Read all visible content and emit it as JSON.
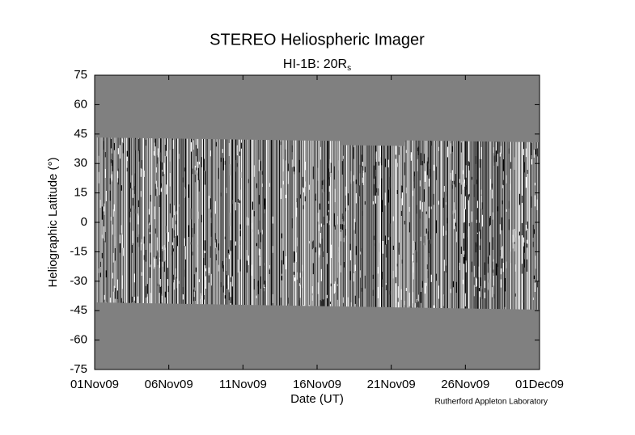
{
  "chart_data": {
    "type": "image",
    "title": "STEREO Heliospheric Imager",
    "subtitle": {
      "text": "HI-1B: 20R",
      "subscript": "s"
    },
    "xlabel": "Date (UT)",
    "ylabel": "Heliographic Latitude (°)",
    "annotation": "Rutherford Appleton Laboratory",
    "xlim": [
      0,
      30
    ],
    "xticks": [
      {
        "value": 0,
        "label": "01Nov09"
      },
      {
        "value": 5,
        "label": "06Nov09"
      },
      {
        "value": 10,
        "label": "11Nov09"
      },
      {
        "value": 15,
        "label": "16Nov09"
      },
      {
        "value": 20,
        "label": "21Nov09"
      },
      {
        "value": 25,
        "label": "26Nov09"
      },
      {
        "value": 30,
        "label": "01Dec09"
      }
    ],
    "ylim": [
      -75,
      75
    ],
    "yticks": [
      -75,
      -60,
      -45,
      -30,
      -15,
      0,
      15,
      30,
      45,
      60,
      75
    ],
    "background": "#808080"
  }
}
